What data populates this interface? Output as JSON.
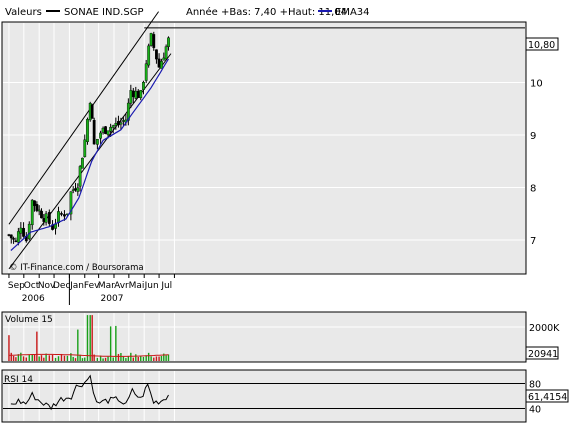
{
  "header": {
    "series_label": "Valeurs",
    "ticker": "SONAE IND.SGP",
    "range_text": "Année +Bas: 7,40 +Haut: 11,04",
    "ema_label": "EMA34",
    "ema_color": "#1a1ab0"
  },
  "watermark": "© IT-Finance.com / Boursorama",
  "chart_data": [
    {
      "type": "candlestick",
      "title": "SONAE IND.SGP",
      "y_ticks": [
        7,
        8,
        9,
        10
      ],
      "ylim": [
        6.4,
        11.5
      ],
      "last_value": "10,80",
      "x_month_labels": [
        "Sep",
        "Oct",
        "Nov",
        "Dec",
        "Jan",
        "Fev",
        "Mar",
        "Avr",
        "Mai",
        "Jun",
        "Jul"
      ],
      "x_year_labels": [
        "2006",
        "2007"
      ],
      "series": [
        {
          "name": "SONAE IND.SGP",
          "key_points": [
            {
              "date": "2006-09-01",
              "close": 7.1
            },
            {
              "date": "2006-09-15",
              "close": 6.95
            },
            {
              "date": "2006-09-25",
              "close": 7.3
            },
            {
              "date": "2006-10-06",
              "close": 7.0
            },
            {
              "date": "2006-10-18",
              "close": 7.75
            },
            {
              "date": "2006-11-01",
              "close": 7.55
            },
            {
              "date": "2006-11-15",
              "close": 7.4
            },
            {
              "date": "2006-11-28",
              "close": 7.25
            },
            {
              "date": "2006-12-10",
              "close": 7.45
            },
            {
              "date": "2006-12-28",
              "close": 7.55
            },
            {
              "date": "2007-01-04",
              "close": 7.9
            },
            {
              "date": "2007-01-18",
              "close": 8.1
            },
            {
              "date": "2007-02-01",
              "close": 8.9
            },
            {
              "date": "2007-02-12",
              "close": 9.7
            },
            {
              "date": "2007-02-20",
              "close": 8.8
            },
            {
              "date": "2007-03-05",
              "close": 9.05
            },
            {
              "date": "2007-03-20",
              "close": 9.15
            },
            {
              "date": "2007-04-10",
              "close": 9.2
            },
            {
              "date": "2007-04-25",
              "close": 9.3
            },
            {
              "date": "2007-05-05",
              "close": 9.85
            },
            {
              "date": "2007-05-25",
              "close": 9.75
            },
            {
              "date": "2007-06-05",
              "close": 10.4
            },
            {
              "date": "2007-06-15",
              "close": 10.85
            },
            {
              "date": "2007-07-01",
              "close": 10.3
            },
            {
              "date": "2007-07-20",
              "close": 10.8
            }
          ]
        },
        {
          "name": "EMA34",
          "key_points": [
            {
              "date": "2006-09-05",
              "value": 6.8
            },
            {
              "date": "2006-10-15",
              "value": 7.15
            },
            {
              "date": "2006-11-20",
              "value": 7.25
            },
            {
              "date": "2006-12-25",
              "value": 7.4
            },
            {
              "date": "2007-01-20",
              "value": 7.8
            },
            {
              "date": "2007-02-15",
              "value": 8.5
            },
            {
              "date": "2007-03-10",
              "value": 8.9
            },
            {
              "date": "2007-04-15",
              "value": 9.1
            },
            {
              "date": "2007-05-15",
              "value": 9.5
            },
            {
              "date": "2007-06-15",
              "value": 9.9
            },
            {
              "date": "2007-07-20",
              "value": 10.45
            }
          ]
        }
      ],
      "channel_lines": [
        {
          "name": "upper",
          "from": {
            "date": "2006-09-01",
            "value": 7.3
          },
          "to": {
            "date": "2007-06-30",
            "value": 11.35
          }
        },
        {
          "name": "lower",
          "from": {
            "date": "2006-09-01",
            "value": 6.45
          },
          "to": {
            "date": "2007-07-25",
            "value": 10.55
          }
        }
      ],
      "grid": true
    },
    {
      "type": "bar",
      "title": "Volume 15",
      "y_tick_label": "2000K",
      "last_value": "20941",
      "colors": {
        "up": "#18a018",
        "down": "#c81818",
        "average": "#c81818"
      }
    },
    {
      "type": "line",
      "title": "RSI 14",
      "y_ticks": [
        40,
        80
      ],
      "ylim": [
        20,
        100
      ],
      "last_value": "61,4154",
      "color": "#000000",
      "key_points": [
        {
          "date": "2006-09-05",
          "value": 45
        },
        {
          "date": "2006-09-20",
          "value": 52
        },
        {
          "date": "2006-10-05",
          "value": 48
        },
        {
          "date": "2006-10-18",
          "value": 62
        },
        {
          "date": "2006-11-05",
          "value": 50
        },
        {
          "date": "2006-11-25",
          "value": 42
        },
        {
          "date": "2006-12-15",
          "value": 55
        },
        {
          "date": "2007-01-05",
          "value": 60
        },
        {
          "date": "2007-01-15",
          "value": 75
        },
        {
          "date": "2007-02-01",
          "value": 82
        },
        {
          "date": "2007-02-12",
          "value": 92
        },
        {
          "date": "2007-02-25",
          "value": 48
        },
        {
          "date": "2007-03-15",
          "value": 52
        },
        {
          "date": "2007-04-10",
          "value": 55
        },
        {
          "date": "2007-04-25",
          "value": 45
        },
        {
          "date": "2007-05-08",
          "value": 68
        },
        {
          "date": "2007-05-25",
          "value": 55
        },
        {
          "date": "2007-06-08",
          "value": 78
        },
        {
          "date": "2007-06-20",
          "value": 50
        },
        {
          "date": "2007-07-05",
          "value": 52
        },
        {
          "date": "2007-07-20",
          "value": 61.4
        }
      ]
    }
  ]
}
